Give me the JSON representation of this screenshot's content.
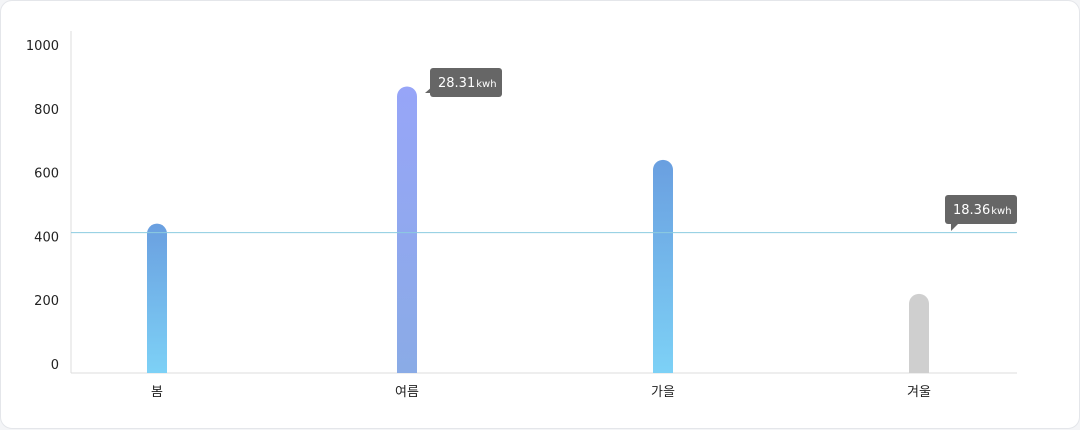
{
  "chart_data": {
    "type": "bar",
    "categories": [
      "봄",
      "여름",
      "가을",
      "겨울"
    ],
    "values": [
      440,
      870,
      640,
      220
    ],
    "y_ticks": [
      0,
      200,
      400,
      600,
      800,
      1000
    ],
    "ylim": [
      0,
      1000
    ],
    "grid": false,
    "reference_line": {
      "value": 412,
      "color": "#8ccbe0"
    },
    "bar_colors": [
      {
        "top": "#6a9fe0",
        "bottom": "#7dd1f6"
      },
      {
        "top": "#97a5f8",
        "bottom": "#8aabe6"
      },
      {
        "top": "#6a9fe0",
        "bottom": "#7dd1f6"
      },
      {
        "top": "#cfcfcf",
        "bottom": "#cfcfcf"
      }
    ],
    "tooltips": [
      {
        "value": "28.31",
        "unit": "kwh"
      },
      {
        "value": "18.36",
        "unit": "kwh"
      }
    ],
    "tooltip_color": "#666666"
  }
}
